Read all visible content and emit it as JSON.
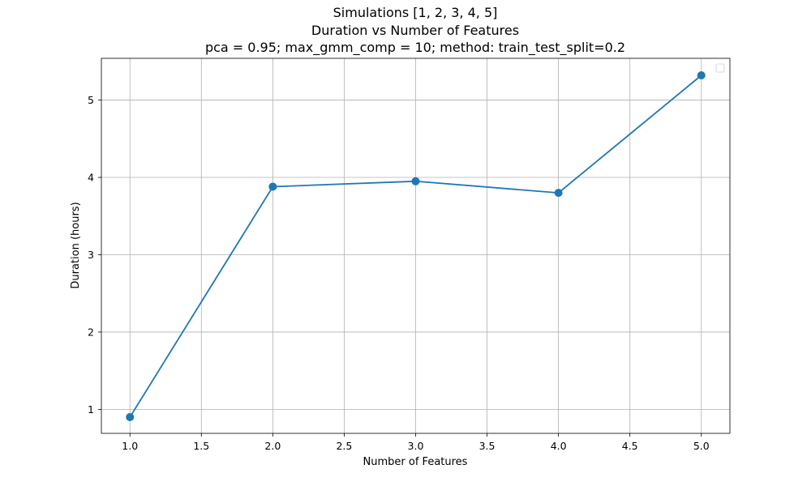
{
  "chart_data": {
    "type": "line",
    "title_lines": [
      "Simulations [1, 2, 3, 4, 5]",
      "Duration vs Number of Features",
      "pca = 0.95; max_gmm_comp = 10; method: train_test_split=0.2"
    ],
    "xlabel": "Number of Features",
    "ylabel": "Duration (hours)",
    "xlim": [
      0.8,
      5.2
    ],
    "ylim": [
      0.69,
      5.54
    ],
    "xticks": [
      "1.0",
      "1.5",
      "2.0",
      "2.5",
      "3.0",
      "3.5",
      "4.0",
      "4.5",
      "5.0"
    ],
    "yticks": [
      "1",
      "2",
      "3",
      "4",
      "5"
    ],
    "grid": true,
    "legend": "top-right",
    "series": [
      {
        "color": "#1f77b4",
        "x": [
          1,
          2,
          3,
          4,
          5
        ],
        "y": [
          0.9,
          3.88,
          3.95,
          3.8,
          5.32
        ]
      }
    ]
  }
}
